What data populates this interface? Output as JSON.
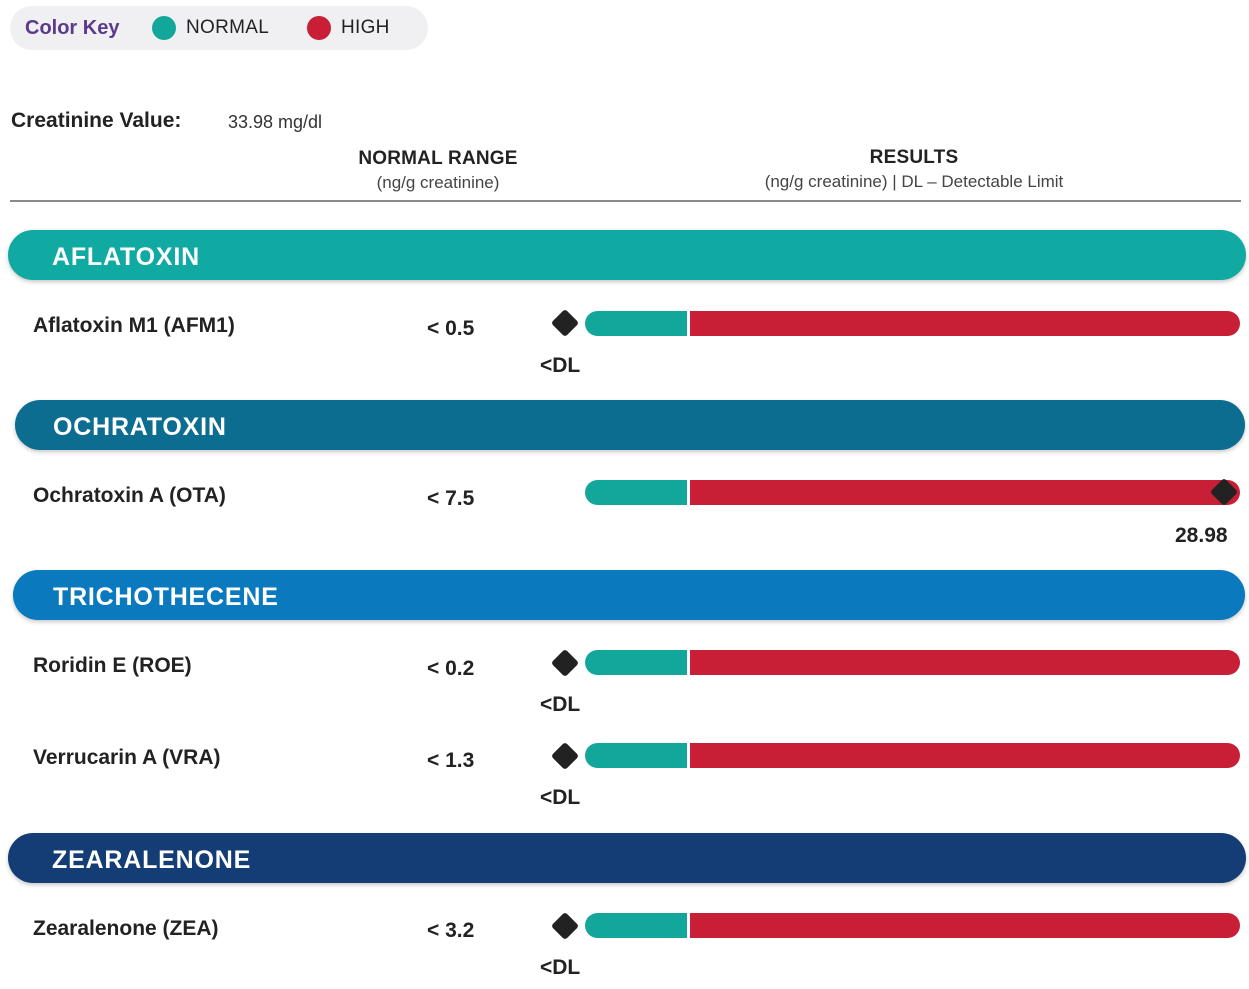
{
  "colors": {
    "normal": "#13a79b",
    "high": "#c81e36",
    "aflatoxin_band": "#10aaa3",
    "ochratoxin_band": "#0d6d91",
    "trichothecene_band": "#0a79bd",
    "zearalenone_band": "#143c75",
    "marker": "#222222"
  },
  "color_key": {
    "title": "Color Key",
    "items": [
      {
        "label": "NORMAL",
        "icon": "teal-dot-icon"
      },
      {
        "label": "HIGH",
        "icon": "red-dot-icon"
      }
    ]
  },
  "creatinine": {
    "label": "Creatinine Value:",
    "value": "33.98 mg/dl"
  },
  "headers": {
    "normal_range": {
      "title": "NORMAL RANGE",
      "subtitle": "(ng/g creatinine)"
    },
    "results": {
      "title": "RESULTS",
      "subtitle": "(ng/g creatinine) | DL – Detectable Limit"
    }
  },
  "sections": [
    {
      "title": "AFLATOXIN",
      "rows": [
        {
          "name": "Aflatoxin M1 (AFM1)",
          "range": "< 0.5",
          "result": "<DL",
          "level": "below-dl"
        }
      ]
    },
    {
      "title": "OCHRATOXIN",
      "rows": [
        {
          "name": "Ochratoxin A (OTA)",
          "range": "< 7.5",
          "result": "28.98",
          "level": "high-max"
        }
      ]
    },
    {
      "title": "TRICHOTHECENE",
      "rows": [
        {
          "name": "Roridin E (ROE)",
          "range": "< 0.2",
          "result": "<DL",
          "level": "below-dl"
        },
        {
          "name": "Verrucarin A (VRA)",
          "range": "< 1.3",
          "result": "<DL",
          "level": "below-dl"
        }
      ]
    },
    {
      "title": "ZEARALENONE",
      "rows": [
        {
          "name": "Zearalenone (ZEA)",
          "range": "< 3.2",
          "result": "<DL",
          "level": "below-dl"
        }
      ]
    }
  ]
}
